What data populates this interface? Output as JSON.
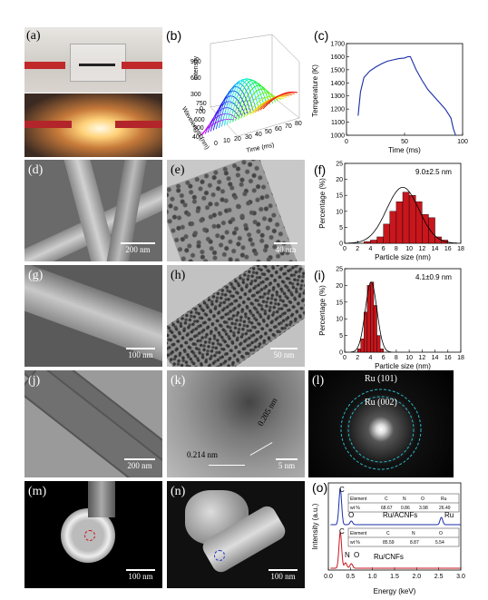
{
  "labels": {
    "a": "(a)",
    "b": "(b)",
    "c": "(c)",
    "d": "(d)",
    "e": "(e)",
    "f": "(f)",
    "g": "(g)",
    "h": "(h)",
    "i": "(i)",
    "j": "(j)",
    "k": "(k)",
    "l": "(l)",
    "m": "(m)",
    "n": "(n)",
    "o": "(o)"
  },
  "scalebars": {
    "d": "200 nm",
    "e": "40 nm",
    "g": "100 nm",
    "h": "50 nm",
    "j": "200 nm",
    "k": "5 nm",
    "m": "100 nm",
    "n": "100 nm"
  },
  "k_annotations": {
    "left": "0.214 nm",
    "right": "0.205 nm"
  },
  "l_annotations": {
    "outer": "Ru (101)",
    "inner": "Ru (002)"
  },
  "colors": {
    "line_blue": "#1a2ea8",
    "bar_red": "#c8161d",
    "dash_cyan": "#28b8c8"
  },
  "chart_data": [
    {
      "id": "b",
      "type": "3d-waterfall",
      "zlabel": "Intensity",
      "ylabel": "Wavelength (nm)",
      "xlabel": "Time (ms)",
      "z_ticks": [
        "0",
        "300",
        "600",
        "900"
      ],
      "y_ticks": [
        "400",
        "450",
        "500",
        "550",
        "600",
        "650",
        "700",
        "750"
      ],
      "x_ticks": [
        "0",
        "10",
        "20",
        "30",
        "40",
        "50",
        "60",
        "70",
        "80"
      ]
    },
    {
      "id": "c",
      "type": "line",
      "xlabel": "Time (ms)",
      "ylabel": "Temperature (K)",
      "xlim": [
        0,
        100
      ],
      "ylim": [
        1000,
        1700
      ],
      "x_ticks": [
        "0",
        "50",
        "100"
      ],
      "y_ticks": [
        "1000",
        "1100",
        "1200",
        "1300",
        "1400",
        "1500",
        "1600",
        "1700"
      ],
      "series": [
        {
          "x": [
            10,
            12,
            15,
            20,
            25,
            30,
            35,
            40,
            45,
            50,
            53,
            55,
            60,
            65,
            70,
            75,
            80,
            85,
            88,
            90,
            92,
            94
          ],
          "y": [
            1150,
            1330,
            1440,
            1490,
            1520,
            1545,
            1565,
            1575,
            1585,
            1590,
            1600,
            1600,
            1500,
            1420,
            1350,
            1300,
            1250,
            1200,
            1160,
            1130,
            1050,
            1000
          ]
        }
      ]
    },
    {
      "id": "f",
      "type": "bar",
      "xlabel": "Particle size (nm)",
      "ylabel": "Percentage (%)",
      "annotation": "9.0±2.5 nm",
      "xlim": [
        0,
        18
      ],
      "ylim": [
        0,
        25
      ],
      "x_ticks": [
        "0",
        "2",
        "4",
        "6",
        "8",
        "10",
        "12",
        "14",
        "16",
        "18"
      ],
      "y_ticks": [
        "0",
        "5",
        "10",
        "15",
        "20",
        "25"
      ],
      "bins": [
        3.5,
        4.5,
        5.5,
        6.5,
        7.5,
        8.5,
        9.5,
        10.5,
        11.5,
        12.5,
        13.5,
        14.5,
        15.5
      ],
      "values": [
        0.5,
        1,
        2,
        6,
        10,
        13,
        16,
        15,
        13,
        9,
        8,
        2,
        1
      ],
      "fit": {
        "mean": 9.0,
        "sd": 2.5,
        "peak": 17.5
      }
    },
    {
      "id": "i",
      "type": "bar",
      "xlabel": "Particle size (nm)",
      "ylabel": "Percentage (%)",
      "annotation": "4.1±0.9 nm",
      "xlim": [
        0,
        18
      ],
      "ylim": [
        0,
        25
      ],
      "x_ticks": [
        "0",
        "2",
        "4",
        "6",
        "8",
        "10",
        "12",
        "14",
        "16",
        "18"
      ],
      "y_ticks": [
        "0",
        "5",
        "10",
        "15",
        "20",
        "25"
      ],
      "bins": [
        2.25,
        2.75,
        3.25,
        3.75,
        4.25,
        4.75,
        5.25,
        5.75
      ],
      "values": [
        1,
        4,
        12,
        20,
        21,
        14,
        5,
        1
      ],
      "fit": {
        "mean": 4.1,
        "sd": 0.9,
        "peak": 21
      }
    },
    {
      "id": "o",
      "type": "line",
      "xlabel": "Energy (keV)",
      "ylabel": "Intensity (a.u.)",
      "xlim": [
        0,
        3.0
      ],
      "x_ticks": [
        "0.0",
        "0.5",
        "1.0",
        "1.5",
        "2.0",
        "2.5",
        "3.0"
      ],
      "series": [
        {
          "name": "Ru/ACNFs",
          "color": "#1a2ea8",
          "peak_labels": [
            "C",
            "O",
            "Ru"
          ]
        },
        {
          "name": "Ru/CNFs",
          "color": "#c8161d",
          "peak_labels": [
            "C",
            "N",
            "O"
          ]
        }
      ],
      "tables": [
        {
          "header": [
            "Element",
            "C",
            "N",
            "O",
            "Ru"
          ],
          "row": [
            "wt %",
            "68.67",
            "0.86",
            "3.98",
            "26.49"
          ]
        },
        {
          "header": [
            "Element",
            "C",
            "N",
            "O"
          ],
          "row": [
            "wt %",
            "85.59",
            "8.87",
            "5.54"
          ]
        }
      ]
    }
  ]
}
